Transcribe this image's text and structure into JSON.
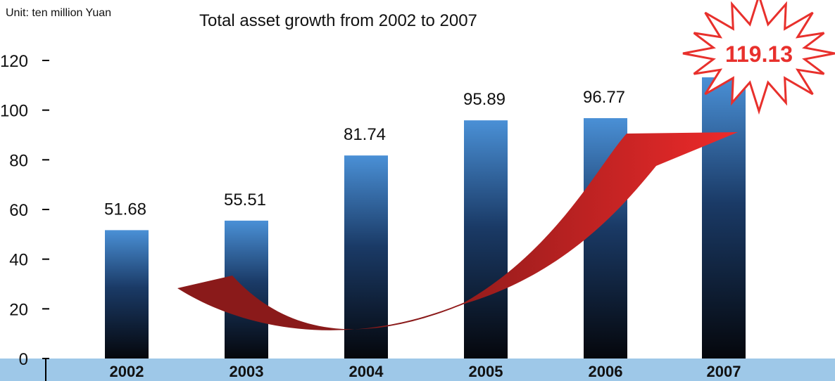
{
  "chart_data": {
    "type": "bar",
    "title": "Total asset growth from 2002 to 2007",
    "unit_label": "Unit: ten million Yuan",
    "categories": [
      "2002",
      "2003",
      "2004",
      "2005",
      "2006",
      "2007"
    ],
    "values": [
      51.68,
      55.51,
      81.74,
      95.89,
      96.77,
      119.13
    ],
    "value_labels": [
      "51.68",
      "55.51",
      "81.74",
      "95.89",
      "96.77",
      "119.13"
    ],
    "highlight_index": 5,
    "ylim": [
      0,
      120
    ],
    "yticks": [
      0,
      20,
      40,
      60,
      80,
      100,
      120
    ],
    "ytick_labels": [
      "0",
      "20",
      "40",
      "60",
      "80",
      "100",
      "120"
    ],
    "grid": false,
    "colors": {
      "bar_top": "#4a90d6",
      "bar_bottom": "#05070c",
      "axis_band": "#9ec8e8",
      "highlight_text": "#e8302c",
      "arrow_dark": "#8a1a1a",
      "arrow_bright": "#ee2a2a"
    }
  }
}
